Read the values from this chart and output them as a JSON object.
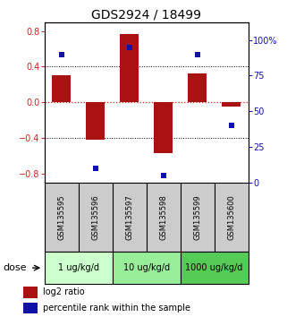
{
  "title": "GDS2924 / 18499",
  "samples": [
    "GSM135595",
    "GSM135596",
    "GSM135597",
    "GSM135598",
    "GSM135599",
    "GSM135600"
  ],
  "log2_ratio": [
    0.3,
    -0.42,
    0.77,
    -0.57,
    0.32,
    -0.05
  ],
  "percentile_rank": [
    90,
    10,
    95,
    5,
    90,
    40
  ],
  "ylim_left": [
    -0.9,
    0.9
  ],
  "ylim_right": [
    0,
    112.5
  ],
  "yticks_left": [
    -0.8,
    -0.4,
    0.0,
    0.4,
    0.8
  ],
  "yticks_right": [
    0,
    25,
    50,
    75,
    100
  ],
  "ytick_labels_right": [
    "0",
    "25",
    "50",
    "75",
    "100%"
  ],
  "dose_groups": [
    {
      "label": "1 ug/kg/d",
      "cols": [
        0,
        1
      ],
      "color": "#ccffcc"
    },
    {
      "label": "10 ug/kg/d",
      "cols": [
        2,
        3
      ],
      "color": "#99ee99"
    },
    {
      "label": "1000 ug/kg/d",
      "cols": [
        4,
        5
      ],
      "color": "#55cc55"
    }
  ],
  "bar_color": "#aa1111",
  "dot_color": "#1111aa",
  "zero_line_color": "#cc2222",
  "background_color": "#ffffff",
  "sample_bg_color": "#cccccc",
  "font_size_title": 10,
  "font_size_yticks": 7,
  "font_size_sample": 6,
  "font_size_dose": 8,
  "font_size_legend": 7,
  "dot_size": 18,
  "bar_width": 0.55
}
